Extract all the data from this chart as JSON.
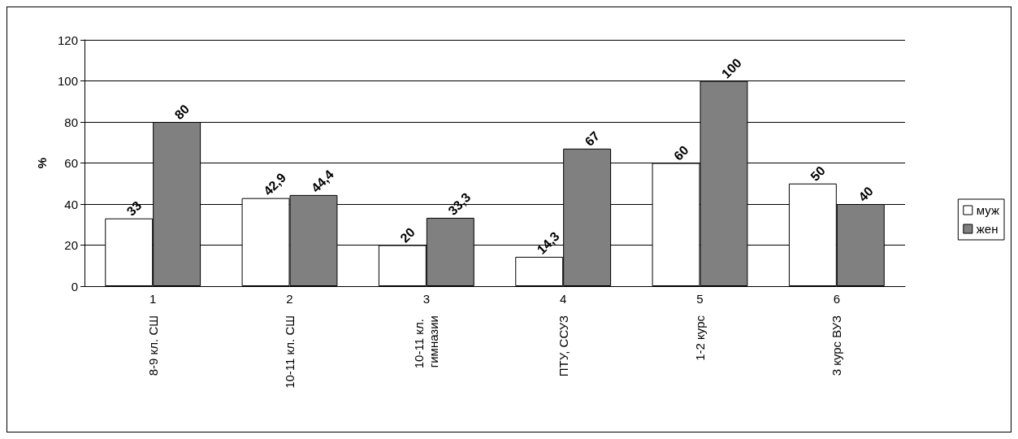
{
  "chart_data": {
    "type": "bar",
    "ylabel": "%",
    "categories": [
      "1",
      "2",
      "3",
      "4",
      "5",
      "6"
    ],
    "annotations": [
      "8-9 кл. СШ",
      "10-11 кл. СШ",
      "10-11 кл. гимназии",
      "ПТУ, ССУЗ",
      "1-2 курс",
      "3 курс ВУЗ"
    ],
    "series": [
      {
        "name": "муж",
        "color": "#ffffff",
        "values": [
          33,
          42.9,
          20,
          14.3,
          60,
          50
        ],
        "value_labels": [
          "33",
          "42,9",
          "20",
          "14,3",
          "60",
          "50"
        ]
      },
      {
        "name": "жен",
        "color": "#808080",
        "values": [
          80,
          44.4,
          33.3,
          67,
          100,
          40
        ],
        "value_labels": [
          "80",
          "44,4",
          "33,3",
          "67",
          "100",
          "40"
        ]
      }
    ],
    "ylim": [
      0,
      120
    ],
    "yticks": [
      0,
      20,
      40,
      60,
      80,
      100,
      120
    ],
    "grid": "y",
    "legend": "right"
  }
}
